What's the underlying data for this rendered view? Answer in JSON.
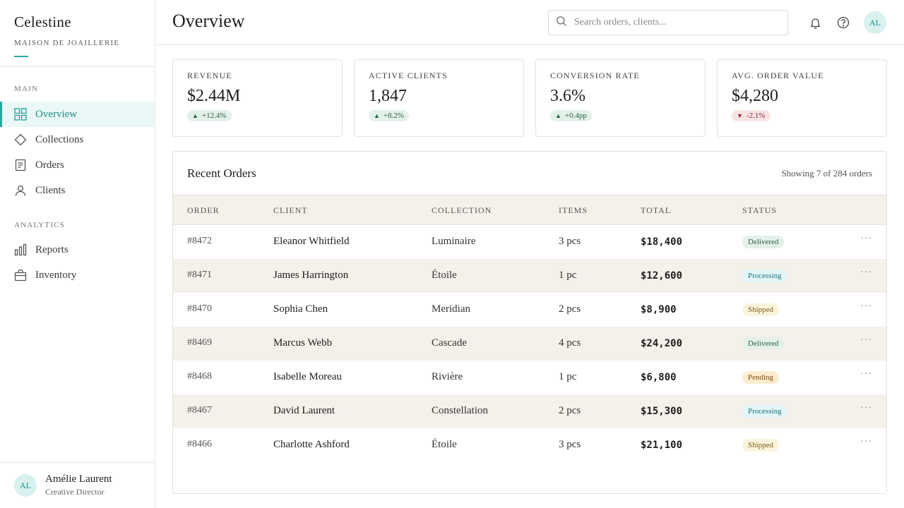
{
  "brand": {
    "name": "Celestine",
    "subtitle": "MAISON DE JOAILLERIE"
  },
  "sidebar": {
    "sections": [
      {
        "label": "MAIN",
        "items": [
          {
            "label": "Overview",
            "icon": "grid-icon",
            "active": true
          },
          {
            "label": "Collections",
            "icon": "diamond-icon"
          },
          {
            "label": "Orders",
            "icon": "document-icon"
          },
          {
            "label": "Clients",
            "icon": "user-icon"
          }
        ]
      },
      {
        "label": "ANALYTICS",
        "items": [
          {
            "label": "Reports",
            "icon": "bar-chart-icon"
          },
          {
            "label": "Inventory",
            "icon": "bag-icon"
          }
        ]
      }
    ],
    "profile": {
      "initials": "AL",
      "name": "Amélie Laurent",
      "role": "Creative Director"
    }
  },
  "header": {
    "title": "Overview",
    "search_placeholder": "Search orders, clients...",
    "avatar_initials": "AL"
  },
  "kpis": [
    {
      "label": "REVENUE",
      "value": "$2.44M",
      "delta": "+12.4%",
      "direction": "up"
    },
    {
      "label": "ACTIVE CLIENTS",
      "value": "1,847",
      "delta": "+8.2%",
      "direction": "up"
    },
    {
      "label": "CONVERSION RATE",
      "value": "3.6%",
      "delta": "+0.4pp",
      "direction": "up"
    },
    {
      "label": "AVG. ORDER VALUE",
      "value": "$4,280",
      "delta": "-2.1%",
      "direction": "down"
    }
  ],
  "orders": {
    "title": "Recent Orders",
    "meta": "Showing 7 of 284 orders",
    "columns": [
      "ORDER",
      "CLIENT",
      "COLLECTION",
      "ITEMS",
      "TOTAL",
      "STATUS"
    ],
    "rows": [
      {
        "order": "#8472",
        "client": "Eleanor Whitfield",
        "collection": "Luminaire",
        "items": "3 pcs",
        "total": "$18,400",
        "status": "Delivered"
      },
      {
        "order": "#8471",
        "client": "James Harrington",
        "collection": "Étoile",
        "items": "1 pc",
        "total": "$12,600",
        "status": "Processing"
      },
      {
        "order": "#8470",
        "client": "Sophia Chen",
        "collection": "Meridian",
        "items": "2 pcs",
        "total": "$8,900",
        "status": "Shipped"
      },
      {
        "order": "#8469",
        "client": "Marcus Webb",
        "collection": "Cascade",
        "items": "4 pcs",
        "total": "$24,200",
        "status": "Delivered"
      },
      {
        "order": "#8468",
        "client": "Isabelle Moreau",
        "collection": "Rivière",
        "items": "1 pc",
        "total": "$6,800",
        "status": "Pending"
      },
      {
        "order": "#8467",
        "client": "David Laurent",
        "collection": "Constellation",
        "items": "2 pcs",
        "total": "$15,300",
        "status": "Processing"
      },
      {
        "order": "#8466",
        "client": "Charlotte Ashford",
        "collection": "Étoile",
        "items": "3 pcs",
        "total": "$21,100",
        "status": "Shipped"
      }
    ]
  },
  "colors": {
    "accent": "#2aa7a0",
    "table_stripe": "#f4f0ea",
    "delivered": "#e3f1ea",
    "processing": "#e2f6f8",
    "shipped": "#fbf4dd",
    "pending": "#fbedd0"
  }
}
